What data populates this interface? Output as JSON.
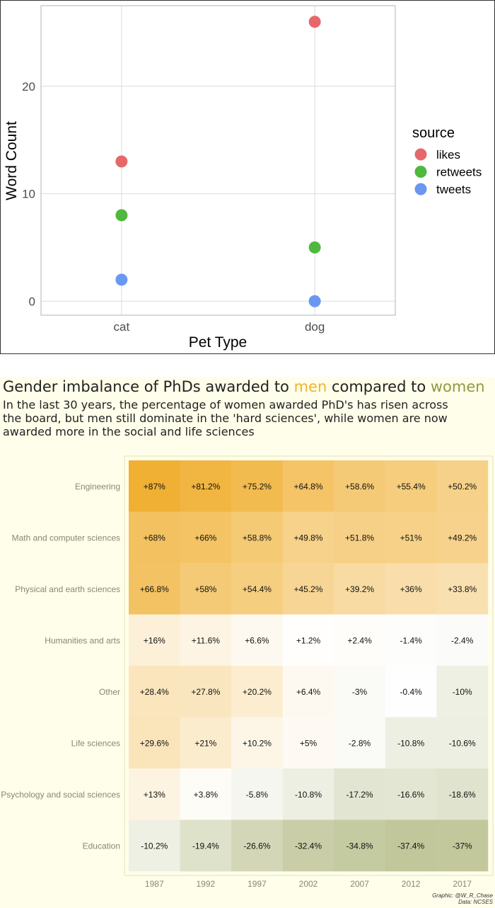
{
  "chart_data": [
    {
      "type": "scatter",
      "title": "",
      "xlabel": "Pet Type",
      "ylabel": "Word Count",
      "categories": [
        "cat",
        "dog"
      ],
      "ylim": [
        -1.3,
        27.5
      ],
      "yticks": [
        0,
        10,
        20
      ],
      "grid": true,
      "legend": {
        "title": "source",
        "position": "right"
      },
      "series": [
        {
          "name": "likes",
          "color": "#e5696a",
          "values": [
            13,
            26
          ]
        },
        {
          "name": "retweets",
          "color": "#4fb83e",
          "values": [
            8,
            5
          ]
        },
        {
          "name": "tweets",
          "color": "#6a97f1",
          "values": [
            2,
            0
          ]
        }
      ]
    },
    {
      "type": "heatmap",
      "title_parts": {
        "prefix": "Gender imbalance of PhDs awarded to ",
        "men": "men",
        "middle": " compared to ",
        "women": "women"
      },
      "subtitle": "In the last 30 years, the percentage of women awarded PhD's has risen across the board, but men still dominate in the 'hard sciences', while women are now awarded more in the social and life sciences",
      "x": [
        "1987",
        "1992",
        "1997",
        "2002",
        "2007",
        "2012",
        "2017"
      ],
      "y": [
        "Engineering",
        "Math and computer sciences",
        "Physical and earth sciences",
        "Humanities and arts",
        "Other",
        "Life sciences",
        "Psychology and social sciences",
        "Education"
      ],
      "values": [
        [
          87,
          81.2,
          75.2,
          64.8,
          58.6,
          55.4,
          50.2
        ],
        [
          68,
          66,
          58.8,
          49.8,
          51.8,
          51,
          49.2
        ],
        [
          66.8,
          58,
          54.4,
          45.2,
          39.2,
          36,
          33.8
        ],
        [
          16,
          11.6,
          6.6,
          1.2,
          2.4,
          -1.4,
          -2.4
        ],
        [
          28.4,
          27.8,
          20.2,
          6.4,
          -3,
          -0.4,
          -10
        ],
        [
          29.6,
          21,
          10.2,
          5,
          -2.8,
          -10.8,
          -10.6
        ],
        [
          13,
          3.8,
          -5.8,
          -10.8,
          -17.2,
          -16.6,
          -18.6
        ],
        [
          -10.2,
          -19.4,
          -26.6,
          -32.4,
          -34.8,
          -37.4,
          -37
        ]
      ],
      "labels": [
        [
          "+87%",
          "+81.2%",
          "+75.2%",
          "+64.8%",
          "+58.6%",
          "+55.4%",
          "+50.2%"
        ],
        [
          "+68%",
          "+66%",
          "+58.8%",
          "+49.8%",
          "+51.8%",
          "+51%",
          "+49.2%"
        ],
        [
          "+66.8%",
          "+58%",
          "+54.4%",
          "+45.2%",
          "+39.2%",
          "+36%",
          "+33.8%"
        ],
        [
          "+16%",
          "+11.6%",
          "+6.6%",
          "+1.2%",
          "+2.4%",
          "-1.4%",
          "-2.4%"
        ],
        [
          "+28.4%",
          "+27.8%",
          "+20.2%",
          "+6.4%",
          "-3%",
          "-0.4%",
          "-10%"
        ],
        [
          "+29.6%",
          "+21%",
          "+10.2%",
          "+5%",
          "-2.8%",
          "-10.8%",
          "-10.6%"
        ],
        [
          "+13%",
          "+3.8%",
          "-5.8%",
          "-10.8%",
          "-17.2%",
          "-16.6%",
          "-18.6%"
        ],
        [
          "-10.2%",
          "-19.4%",
          "-26.6%",
          "-32.4%",
          "-34.8%",
          "-37.4%",
          "-37%"
        ]
      ],
      "colors": {
        "men": "#f0b033",
        "neutral": "#ffffff",
        "women": "#c1c79a"
      },
      "caption": [
        "Graphic: @W_R_Chase",
        "Data: NCSES"
      ]
    }
  ]
}
